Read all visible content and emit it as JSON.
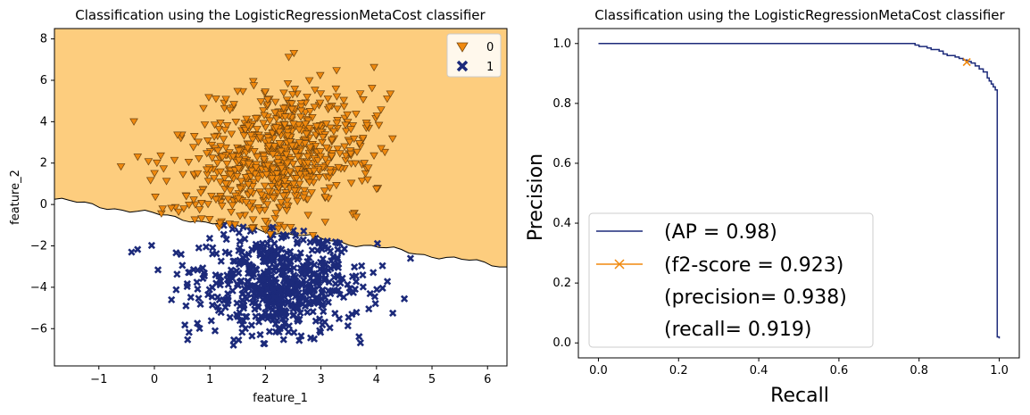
{
  "chart_data": [
    {
      "type": "scatter",
      "title": "Classification using the LogisticRegressionMetaCost classifier",
      "xlabel": "feature_1",
      "ylabel": "feature_2",
      "xlim": [
        -1.8,
        6.35
      ],
      "ylim": [
        -7.8,
        8.5
      ],
      "xticks": [
        -1,
        0,
        1,
        2,
        3,
        4,
        5,
        6
      ],
      "yticks": [
        -6,
        -4,
        -2,
        0,
        2,
        4,
        6,
        8
      ],
      "decision_boundary": {
        "x": [
          -1.8,
          6.35
        ],
        "y": [
          0.25,
          -3.0
        ]
      },
      "region_colors": {
        "class_0": "#fdcd7e",
        "class_1": "#ffffff"
      },
      "legend": {
        "placement": "top-right",
        "entries": [
          "0",
          "1"
        ]
      },
      "series": [
        {
          "name": "0",
          "marker": "triangle-down",
          "color": "#f0890e",
          "center": [
            2.2,
            2.3
          ],
          "spread": [
            0.7,
            1.6
          ],
          "tilt": -0.55,
          "count": 700
        },
        {
          "name": "1",
          "marker": "x",
          "color": "#1c2a7a",
          "center": [
            2.2,
            -3.8
          ],
          "spread": [
            0.75,
            1.3
          ],
          "count": 600
        }
      ],
      "grid": false
    },
    {
      "type": "line",
      "title": "Classification using the LogisticRegressionMetaCost classifier",
      "xlabel": "Recall",
      "ylabel": "Precision",
      "xlim": [
        -0.05,
        1.05
      ],
      "ylim": [
        -0.05,
        1.05
      ],
      "xticks": [
        "0.0",
        "0.2",
        "0.4",
        "0.6",
        "0.8",
        "1.0"
      ],
      "yticks": [
        "0.0",
        "0.2",
        "0.4",
        "0.6",
        "0.8",
        "1.0"
      ],
      "series": [
        {
          "name": "(AP = 0.98)",
          "color": "#1c2a7a",
          "x": [
            0.0,
            0.78,
            0.79,
            0.8,
            0.81,
            0.82,
            0.83,
            0.85,
            0.86,
            0.87,
            0.89,
            0.9,
            0.91,
            0.92,
            0.93,
            0.94,
            0.95,
            0.96,
            0.97,
            0.975,
            0.98,
            0.985,
            0.99,
            0.995,
            0.995,
            1.0
          ],
          "y": [
            1.0,
            1.0,
            0.995,
            0.99,
            0.99,
            0.985,
            0.98,
            0.975,
            0.965,
            0.96,
            0.955,
            0.95,
            0.945,
            0.94,
            0.935,
            0.925,
            0.915,
            0.905,
            0.885,
            0.875,
            0.865,
            0.855,
            0.845,
            0.825,
            0.02,
            0.015
          ]
        },
        {
          "name": "(f2-score = 0.923)",
          "color": "#f0890e",
          "marker": "x",
          "x": [
            0.919
          ],
          "y": [
            0.938
          ]
        }
      ],
      "legend": {
        "placement": "lower-left",
        "entries": [
          "(AP = 0.98)",
          "(f2-score = 0.923)",
          "(precision= 0.938)",
          "(recall= 0.919)"
        ]
      },
      "grid": false
    }
  ]
}
